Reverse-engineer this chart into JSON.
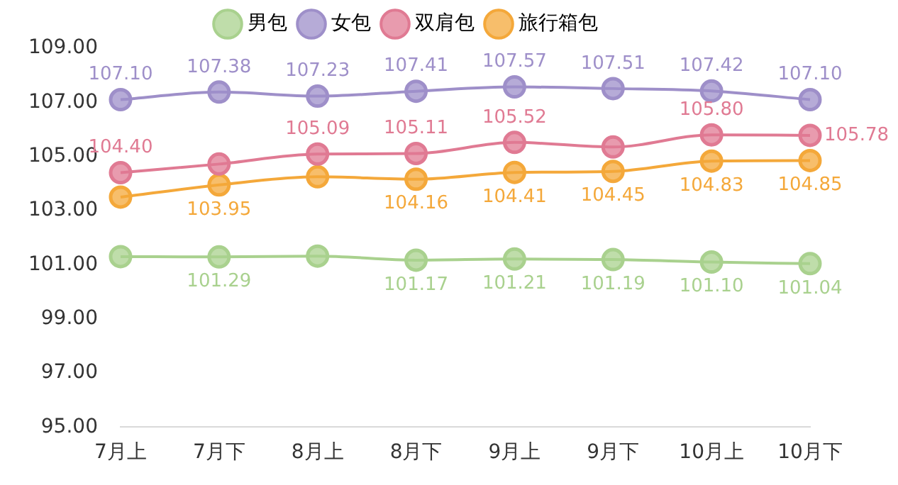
{
  "chart_data": {
    "type": "line",
    "categories": [
      "7月上",
      "7月下",
      "8月上",
      "8月下",
      "9月上",
      "9月下",
      "10月上",
      "10月下"
    ],
    "series": [
      {
        "name": "男包",
        "color": "#a9d18e",
        "values": [
          101.3,
          101.29,
          101.32,
          101.17,
          101.21,
          101.19,
          101.1,
          101.04
        ],
        "value_labels": [
          null,
          "101.29",
          null,
          "101.17",
          "101.21",
          "101.19",
          "101.10",
          "101.04"
        ]
      },
      {
        "name": "女包",
        "color": "#9e8fc9",
        "values": [
          107.1,
          107.38,
          107.23,
          107.41,
          107.57,
          107.51,
          107.42,
          107.1
        ],
        "value_labels": [
          "107.10",
          "107.38",
          "107.23",
          "107.41",
          "107.57",
          "107.51",
          "107.42",
          "107.10"
        ]
      },
      {
        "name": "双肩包",
        "color": "#e07a93",
        "values": [
          104.4,
          104.72,
          105.09,
          105.11,
          105.52,
          105.35,
          105.8,
          105.78
        ],
        "value_labels": [
          "104.40",
          null,
          "105.09",
          "105.11",
          "105.52",
          null,
          "105.80",
          "105.78"
        ]
      },
      {
        "name": "旅行箱包",
        "color": "#f4a83a",
        "values": [
          103.5,
          103.95,
          104.25,
          104.16,
          104.41,
          104.45,
          104.83,
          104.85
        ],
        "value_labels": [
          null,
          "103.95",
          null,
          "104.16",
          "104.41",
          "104.45",
          "104.83",
          "104.85"
        ]
      }
    ],
    "ylim": [
      95,
      109
    ],
    "yticks": [
      {
        "value": 95,
        "label": "95.00"
      },
      {
        "value": 97,
        "label": "97.00"
      },
      {
        "value": 99,
        "label": "99.00"
      },
      {
        "value": 101,
        "label": "101.00"
      },
      {
        "value": 103,
        "label": "103.00"
      },
      {
        "value": 105,
        "label": "105.00"
      },
      {
        "value": 107,
        "label": "107.00"
      },
      {
        "value": 109,
        "label": "109.00"
      }
    ],
    "grid": false,
    "legend": "top",
    "marker": "circle",
    "line_style": "solid"
  }
}
